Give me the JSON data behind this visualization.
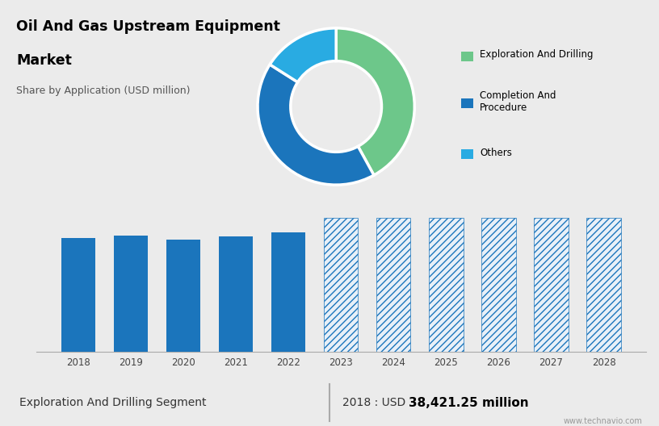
{
  "title_line1": "Oil And Gas Upstream Equipment",
  "title_line2": "Market",
  "subtitle": "Share by Application (USD million)",
  "bg_top": "#ccd8e8",
  "bg_bottom": "#ebebeb",
  "pie_colors": [
    "#6dc78a",
    "#1b75bc",
    "#29abe2"
  ],
  "pie_sizes": [
    42,
    42,
    16
  ],
  "pie_labels": [
    "Exploration And Drilling",
    "Completion And\nProcedure",
    "Others"
  ],
  "bar_years_hist": [
    2018,
    2019,
    2020,
    2021,
    2022
  ],
  "bar_heights_hist": [
    85,
    87,
    84,
    86,
    89
  ],
  "bar_years_fore": [
    2023,
    2024,
    2025,
    2026,
    2027,
    2028
  ],
  "bar_heights_fore": [
    100,
    100,
    100,
    100,
    100,
    100
  ],
  "bar_color_hist": "#1b75bc",
  "bar_color_fore_edge": "#1b75bc",
  "bar_color_fore_fill": "#e8f0f8",
  "footer_left": "Exploration And Drilling Segment",
  "footer_right_prefix": "2018 : USD ",
  "footer_right_bold": "38,421.25 million",
  "watermark": "www.technavio.com",
  "grid_color": "#d0d0d0",
  "ylim": [
    0,
    115
  ]
}
